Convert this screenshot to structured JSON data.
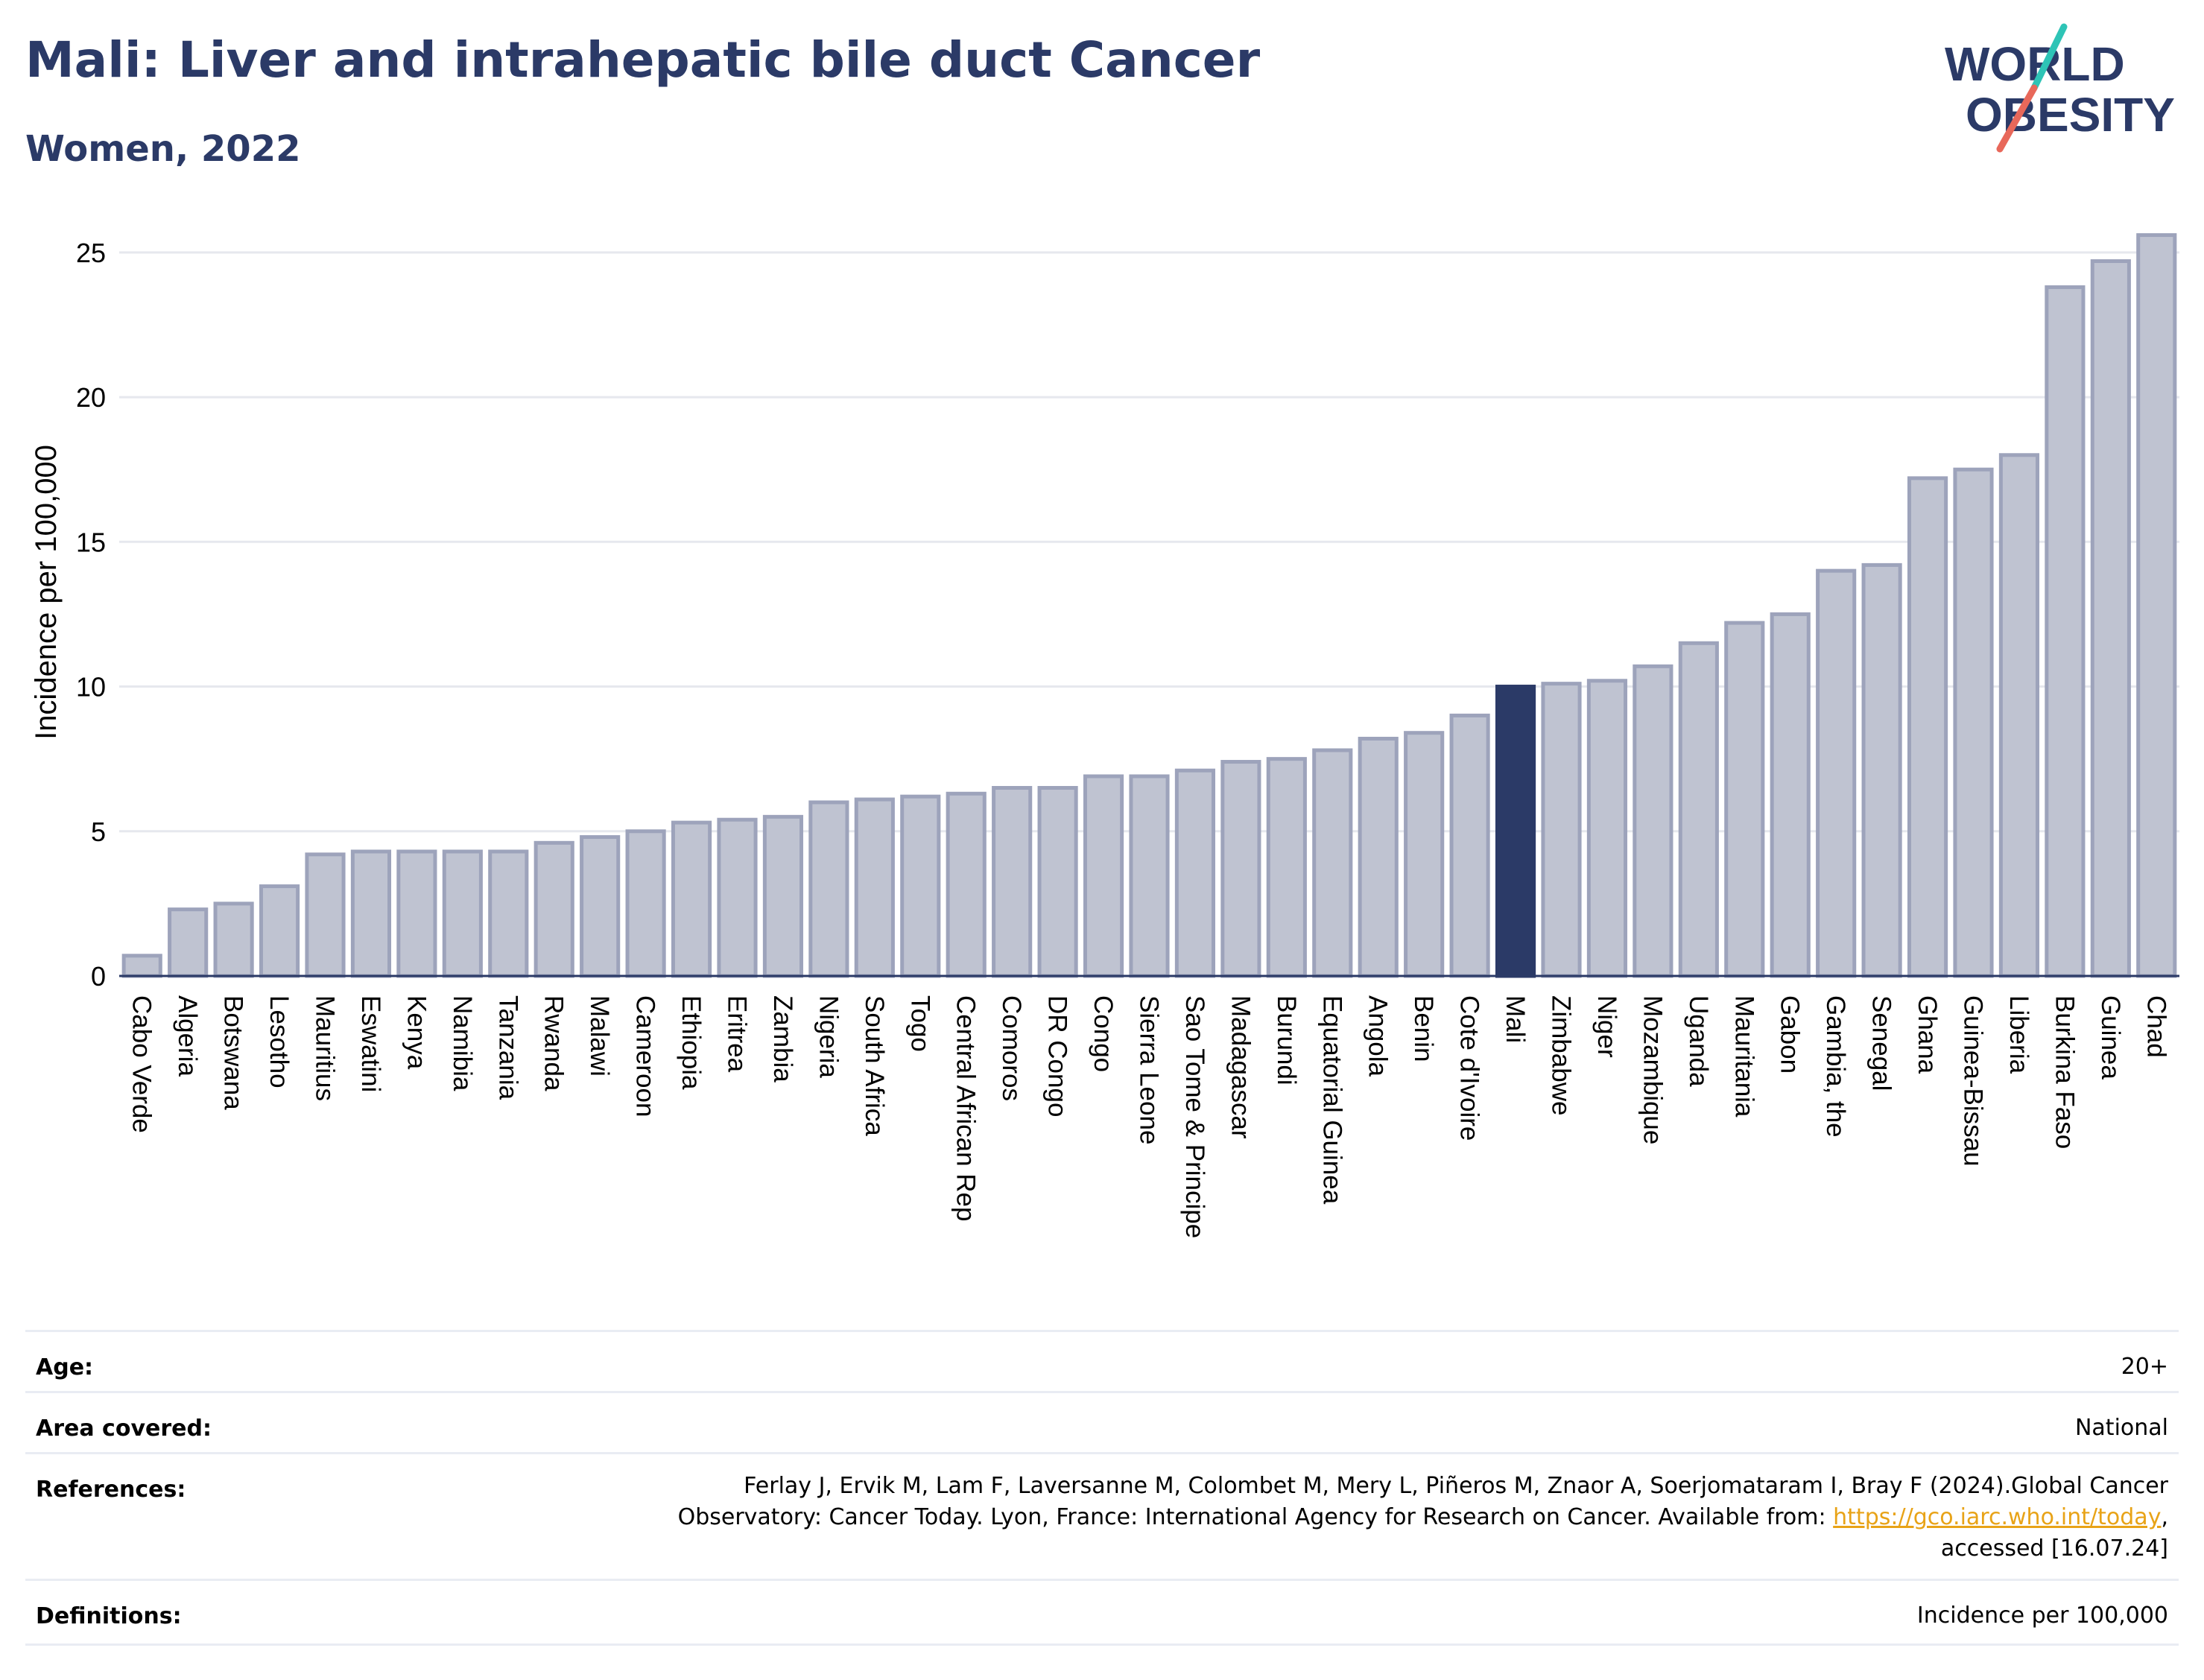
{
  "header": {
    "title": "Mali: Liver and intrahepatic bile duct Cancer",
    "subtitle": "Women, 2022"
  },
  "logo": {
    "line1": "WORLD",
    "line2": "OBESITY",
    "slash_colors": [
      "#2ec4b6",
      "#e8685a"
    ],
    "text_color": "#2b3a67"
  },
  "chart_data": {
    "type": "bar",
    "ylabel": "Incidence per 100,000",
    "xlabel": "",
    "ylim": [
      0,
      26
    ],
    "yticks": [
      0,
      5,
      10,
      15,
      20,
      25
    ],
    "grid": true,
    "highlight": "Mali",
    "colors": {
      "bar": "#bfc3d1",
      "bar_edge": "#9da3bb",
      "highlight": "#2b3a67",
      "grid": "#e6e8ee",
      "axis": "#2b3a67"
    },
    "categories": [
      "Cabo Verde",
      "Algeria",
      "Botswana",
      "Lesotho",
      "Mauritius",
      "Eswatini",
      "Kenya",
      "Namibia",
      "Tanzania",
      "Rwanda",
      "Malawi",
      "Cameroon",
      "Ethiopia",
      "Eritrea",
      "Zambia",
      "Nigeria",
      "South Africa",
      "Togo",
      "Central African Rep",
      "Comoros",
      "DR Congo",
      "Congo",
      "Sierra Leone",
      "Sao Tome & Principe",
      "Madagascar",
      "Burundi",
      "Equatorial Guinea",
      "Angola",
      "Benin",
      "Cote d'Ivoire",
      "Mali",
      "Zimbabwe",
      "Niger",
      "Mozambique",
      "Uganda",
      "Mauritania",
      "Gabon",
      "Gambia, the",
      "Senegal",
      "Ghana",
      "Guinea-Bissau",
      "Liberia",
      "Burkina Faso",
      "Guinea",
      "Chad"
    ],
    "values": [
      0.7,
      2.3,
      2.5,
      3.1,
      4.2,
      4.3,
      4.3,
      4.3,
      4.3,
      4.6,
      4.8,
      5.0,
      5.3,
      5.4,
      5.5,
      6.0,
      6.1,
      6.2,
      6.3,
      6.5,
      6.5,
      6.9,
      6.9,
      7.1,
      7.4,
      7.5,
      7.8,
      8.2,
      8.4,
      9.0,
      10.0,
      10.1,
      10.2,
      10.7,
      11.5,
      12.2,
      12.5,
      14.0,
      14.2,
      17.2,
      17.5,
      18.0,
      23.8,
      24.7,
      25.6
    ]
  },
  "info": {
    "rows": [
      {
        "label": "Age:",
        "value": "20+"
      },
      {
        "label": "Area covered:",
        "value": "National"
      },
      {
        "label": "References:",
        "value_lines": [
          "Ferlay J, Ervik M, Lam F, Laversanne M, Colombet M, Mery L, Piñeros M, Znaor A, Soerjomataram I, Bray F (2024).Global Cancer",
          "Observatory: Cancer Today. Lyon, France: International Agency for Research on Cancer. Available from:"
        ],
        "link": "https://gco.iarc.who.int/today",
        "link_suffix": ",",
        "last_line": "accessed [16.07.24]"
      },
      {
        "label": "Definitions:",
        "value": "Incidence per 100,000"
      }
    ]
  }
}
